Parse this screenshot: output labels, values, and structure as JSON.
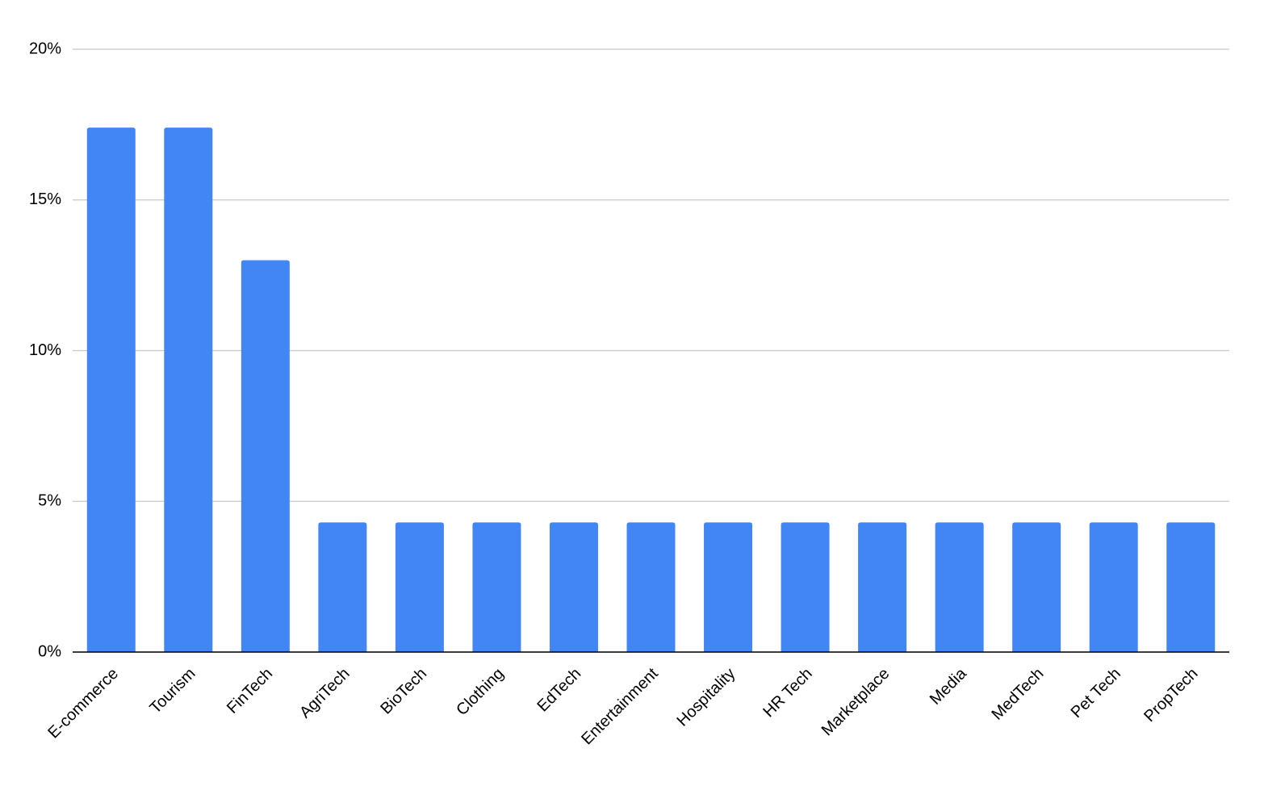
{
  "chart_data": {
    "type": "bar",
    "categories": [
      "E-commerce",
      "Tourism",
      "FinTech",
      "AgriTech",
      "BioTech",
      "Clothing",
      "EdTech",
      "Entertainment",
      "Hospitality",
      "HR Tech",
      "Marketplace",
      "Media",
      "MedTech",
      "Pet Tech",
      "PropTech"
    ],
    "values": [
      17.4,
      17.4,
      13.0,
      4.3,
      4.3,
      4.3,
      4.3,
      4.3,
      4.3,
      4.3,
      4.3,
      4.3,
      4.3,
      4.3,
      4.3
    ],
    "color": "#4285f4",
    "ylim": [
      0,
      20
    ],
    "yticks": [
      {
        "value": 0,
        "label": "0%"
      },
      {
        "value": 5,
        "label": "5%"
      },
      {
        "value": 10,
        "label": "10%"
      },
      {
        "value": 15,
        "label": "15%"
      },
      {
        "value": 20,
        "label": "20%"
      }
    ],
    "grid": true
  }
}
